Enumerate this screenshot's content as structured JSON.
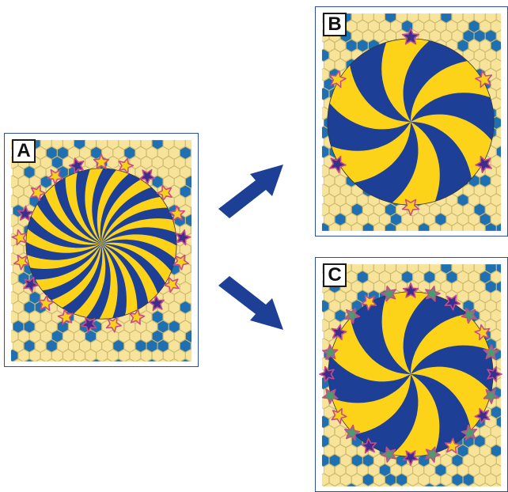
{
  "panels": [
    {
      "label": "A",
      "blades": 18,
      "stars": [
        "yellow",
        "yellow",
        "purple",
        "yellow",
        "yellow",
        "purple",
        "yellow",
        "yellow",
        "purple",
        "yellow",
        "yellow",
        "purple",
        "yellow",
        "yellow",
        "purple",
        "yellow",
        "yellow",
        "purple",
        "yellow",
        "yellow",
        "purple"
      ]
    },
    {
      "label": "B",
      "blades": 6,
      "stars": [
        "purple",
        "yellow",
        "purple",
        "yellow",
        "purple",
        "yellow"
      ]
    },
    {
      "label": "C",
      "blades": 6,
      "stars": [
        "purple",
        "green",
        "purple",
        "green",
        "yellow",
        "green",
        "purple",
        "green",
        "purple",
        "green",
        "yellow",
        "green",
        "purple",
        "green",
        "purple",
        "green",
        "yellow",
        "green",
        "purple",
        "green",
        "purple",
        "green",
        "yellow",
        "green"
      ]
    }
  ],
  "colors": {
    "blue": "#1d3f96",
    "yellow": "#fcd319",
    "hex_light": "#f8e39a",
    "hex_dark": "#1f6fb3",
    "hex_line": "#c9b86a",
    "frame": "#2b4fa3",
    "star_yellow": "#f7d21c",
    "star_purple": "#3a2f8c",
    "star_green": "#4c9a6d",
    "star_outline": "#c94a8b",
    "arrow": "#1d3f96"
  },
  "arrows": [
    {
      "from": "A",
      "to": "B"
    },
    {
      "from": "A",
      "to": "C"
    }
  ]
}
